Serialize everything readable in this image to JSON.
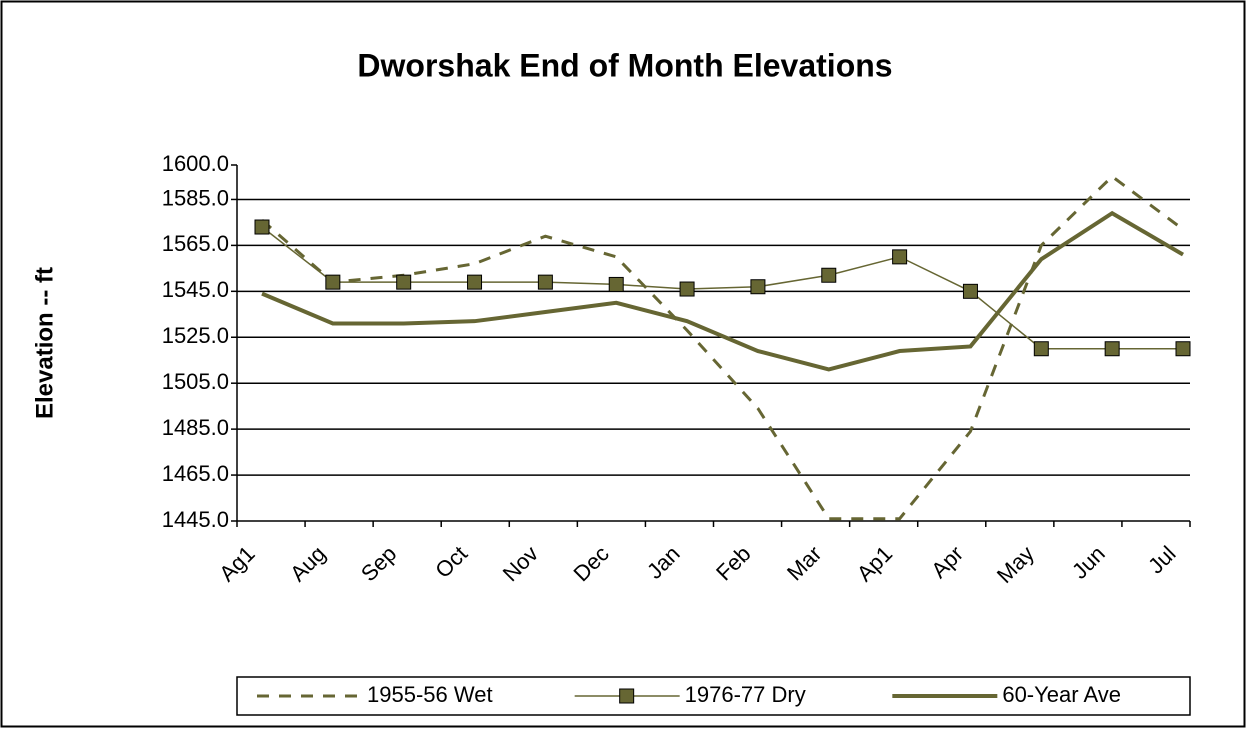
{
  "chart_data": {
    "type": "line",
    "title": "Dworshak End of Month Elevations",
    "y_label": "Elevation -- ft",
    "categories": [
      "Ag1",
      "Aug",
      "Sep",
      "Oct",
      "Nov",
      "Dec",
      "Jan",
      "Feb",
      "Mar",
      "Ap1",
      "Apr",
      "May",
      "Jun",
      "Jul"
    ],
    "series": [
      {
        "name": "1955-56 Wet",
        "color": "#666633",
        "line_style": "dashed",
        "values": [
          1576,
          1549,
          1552,
          1557,
          1569,
          1560,
          1528,
          1494,
          1446,
          1446,
          1484,
          1565,
          1595,
          1572
        ]
      },
      {
        "name": "1976-77 Dry",
        "color": "#666633",
        "line_style": "solid",
        "marker": "square",
        "values": [
          1573,
          1549,
          1549,
          1549,
          1549,
          1548,
          1546,
          1547,
          1552,
          1560,
          1545,
          1520,
          1520,
          1520
        ]
      },
      {
        "name": "60-Year Ave",
        "color": "#666633",
        "line_style": "thick",
        "values": [
          1544,
          1531,
          1531,
          1532,
          1536,
          1540,
          1532,
          1519,
          1511,
          1519,
          1521,
          1559,
          1579,
          1561
        ]
      }
    ],
    "ylim": [
      1445,
      1600
    ],
    "yticks": [
      {
        "value": 1445,
        "label": "1445.0"
      },
      {
        "value": 1465,
        "label": "1465.0"
      },
      {
        "value": 1485,
        "label": "1485.0"
      },
      {
        "value": 1505,
        "label": "1505.0"
      },
      {
        "value": 1525,
        "label": "1525.0"
      },
      {
        "value": 1545,
        "label": "1545.0"
      },
      {
        "value": 1565,
        "label": "1565.0"
      },
      {
        "value": 1585,
        "label": "1585.0"
      },
      {
        "value": 1600,
        "label": "1600.0"
      }
    ],
    "grid": true,
    "legend": "bottom"
  }
}
